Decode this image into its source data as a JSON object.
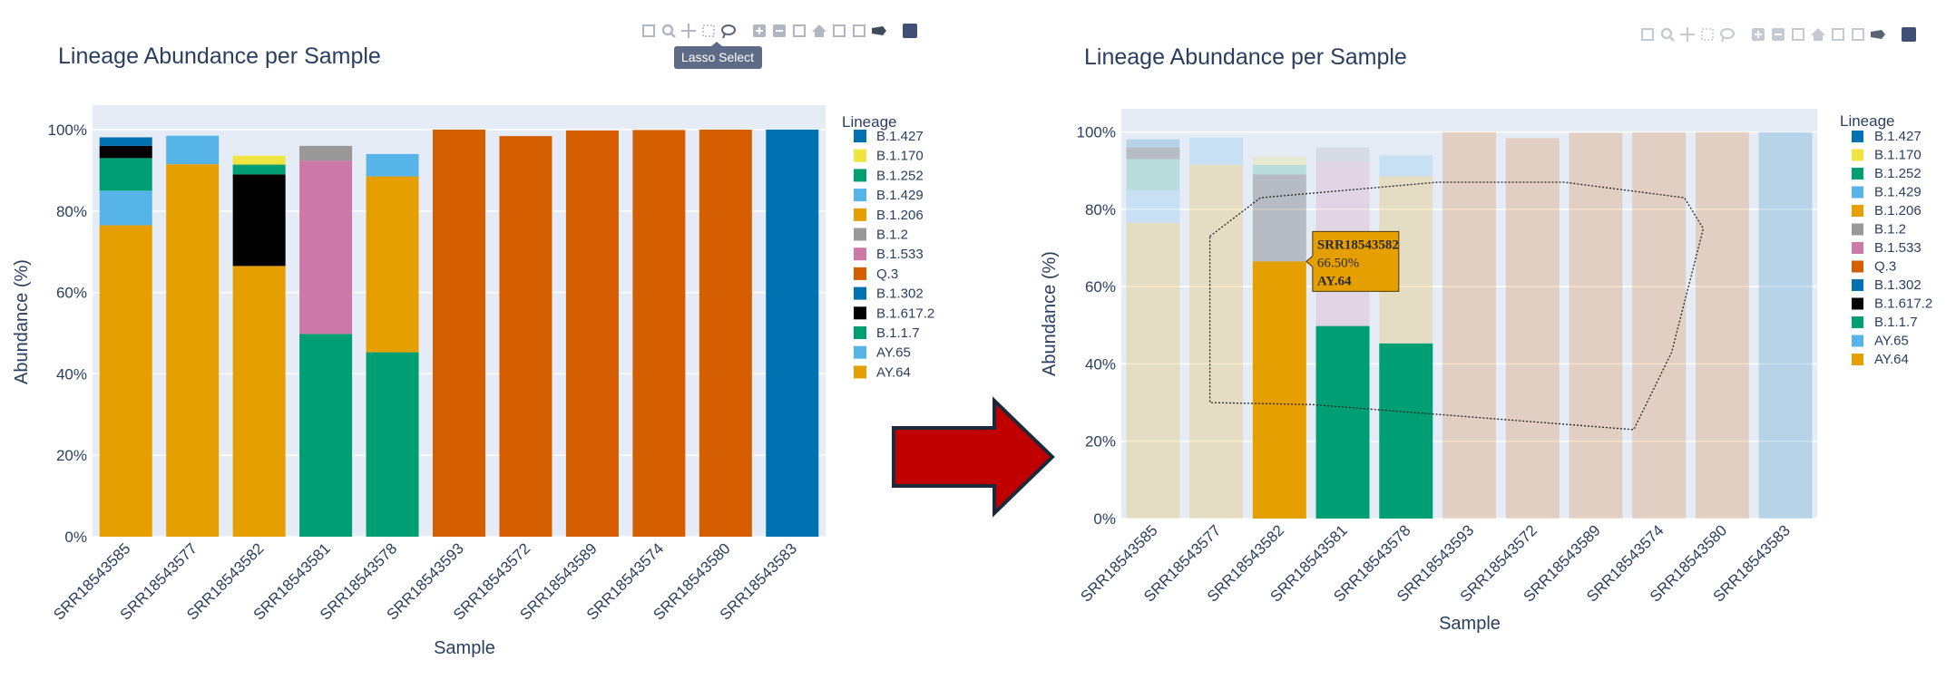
{
  "tooltip": "Lasso Select",
  "hover": {
    "sample": "SRR18543582",
    "value": "66.50%",
    "lineage": "AY.64"
  },
  "toolbar_icons": [
    "camera-icon",
    "zoom-icon",
    "pan-icon",
    "box-select-icon",
    "lasso-select-icon",
    "zoom-in-icon",
    "zoom-out-icon",
    "autoscale-icon",
    "reset-axes-icon",
    "spike-lines-icon",
    "hover-closest-icon",
    "hover-compare-icon",
    "plotly-logo-icon"
  ],
  "colors": {
    "B.1.427": "#0072b2",
    "B.1.170": "#f0e442",
    "B.1.252": "#009e73",
    "B.1.429": "#56b4e9",
    "B.1.206": "#e69f00",
    "B.1.2": "#999999",
    "B.1.533": "#cc79a7",
    "Q.3": "#d55e00",
    "B.1.302": "#0072b2",
    "B.1.617.2": "#000000",
    "B.1.1.7": "#009e73",
    "AY.65": "#56b4e9",
    "AY.64": "#e69f00",
    "arrow": "#c00000",
    "plot_bg": "#e5ecf6"
  },
  "chart_data": [
    {
      "type": "bar",
      "title": "Lineage Abundance per Sample",
      "xlabel": "Sample",
      "ylabel": "Abundance (%)",
      "ylim": [
        0,
        106
      ],
      "yticks": [
        "0%",
        "20%",
        "40%",
        "60%",
        "80%",
        "100%"
      ],
      "legend_title": "Lineage",
      "legend_position": "right",
      "selection": "none",
      "categories": [
        "SRR18543585",
        "SRR18543577",
        "SRR18543582",
        "SRR18543581",
        "SRR18543578",
        "SRR18543593",
        "SRR18543572",
        "SRR18543589",
        "SRR18543574",
        "SRR18543580",
        "SRR18543583"
      ],
      "series": [
        {
          "name": "AY.64",
          "values": [
            76.5,
            91.5,
            66.5,
            0,
            0,
            0,
            0,
            0,
            0,
            0,
            0
          ]
        },
        {
          "name": "AY.65",
          "values": [
            8.5,
            7,
            0,
            0,
            0,
            0,
            0,
            0,
            0,
            0,
            0
          ]
        },
        {
          "name": "B.1.1.7",
          "values": [
            8,
            0,
            0,
            49.8,
            45.3,
            0,
            0,
            0,
            0,
            0,
            0
          ]
        },
        {
          "name": "B.1.617.2",
          "values": [
            3,
            0,
            22.5,
            0,
            0,
            0,
            0,
            0,
            0,
            0,
            0
          ]
        },
        {
          "name": "B.1.302",
          "values": [
            0,
            0,
            0,
            0,
            0,
            0,
            0,
            0,
            0,
            0,
            100
          ]
        },
        {
          "name": "Q.3",
          "values": [
            0,
            0,
            0,
            0,
            0,
            100,
            98.4,
            99.8,
            99.9,
            100,
            0
          ]
        },
        {
          "name": "B.1.533",
          "values": [
            0,
            0,
            0,
            42.6,
            0,
            0,
            0,
            0,
            0,
            0,
            0
          ]
        },
        {
          "name": "B.1.2",
          "values": [
            0,
            0,
            0,
            3.6,
            0,
            0,
            0,
            0,
            0,
            0,
            0
          ]
        },
        {
          "name": "B.1.206",
          "values": [
            0,
            0,
            0,
            0,
            43.2,
            0,
            0,
            0,
            0,
            0,
            0
          ]
        },
        {
          "name": "B.1.429",
          "values": [
            0,
            0,
            0,
            0,
            5.5,
            0,
            0,
            0,
            0,
            0,
            0
          ]
        },
        {
          "name": "B.1.252",
          "values": [
            0,
            0,
            2.4,
            0,
            0,
            0,
            0,
            0,
            0,
            0,
            0
          ]
        },
        {
          "name": "B.1.170",
          "values": [
            0,
            0,
            2.2,
            0,
            0,
            0,
            0,
            0,
            0,
            0,
            0
          ]
        },
        {
          "name": "B.1.427",
          "values": [
            2.1,
            0,
            0,
            0,
            0,
            0,
            0,
            0,
            0,
            0,
            0
          ]
        }
      ]
    },
    {
      "type": "bar",
      "title": "Lineage Abundance per Sample",
      "xlabel": "Sample",
      "ylabel": "Abundance (%)",
      "ylim": [
        0,
        106
      ],
      "yticks": [
        "0%",
        "20%",
        "40%",
        "60%",
        "80%",
        "100%"
      ],
      "legend_title": "Lineage",
      "legend_position": "right",
      "selection": "lasso",
      "selected_samples": [
        "SRR18543582",
        "SRR18543581",
        "SRR18543578"
      ],
      "categories": [
        "SRR18543585",
        "SRR18543577",
        "SRR18543582",
        "SRR18543581",
        "SRR18543578",
        "SRR18543593",
        "SRR18543572",
        "SRR18543589",
        "SRR18543574",
        "SRR18543580",
        "SRR18543583"
      ],
      "series": [
        {
          "name": "AY.64",
          "values": [
            76.5,
            91.5,
            66.5,
            0,
            0,
            0,
            0,
            0,
            0,
            0,
            0
          ]
        },
        {
          "name": "AY.65",
          "values": [
            8.5,
            7,
            0,
            0,
            0,
            0,
            0,
            0,
            0,
            0,
            0
          ]
        },
        {
          "name": "B.1.1.7",
          "values": [
            8,
            0,
            0,
            49.8,
            45.3,
            0,
            0,
            0,
            0,
            0,
            0
          ]
        },
        {
          "name": "B.1.617.2",
          "values": [
            3,
            0,
            22.5,
            0,
            0,
            0,
            0,
            0,
            0,
            0,
            0
          ]
        },
        {
          "name": "B.1.302",
          "values": [
            0,
            0,
            0,
            0,
            0,
            0,
            0,
            0,
            0,
            0,
            100
          ]
        },
        {
          "name": "Q.3",
          "values": [
            0,
            0,
            0,
            0,
            0,
            100,
            98.4,
            99.8,
            99.9,
            100,
            0
          ]
        },
        {
          "name": "B.1.533",
          "values": [
            0,
            0,
            0,
            42.6,
            0,
            0,
            0,
            0,
            0,
            0,
            0
          ]
        },
        {
          "name": "B.1.2",
          "values": [
            0,
            0,
            0,
            3.6,
            0,
            0,
            0,
            0,
            0,
            0,
            0
          ]
        },
        {
          "name": "B.1.206",
          "values": [
            0,
            0,
            0,
            0,
            43.2,
            0,
            0,
            0,
            0,
            0,
            0
          ]
        },
        {
          "name": "B.1.429",
          "values": [
            0,
            0,
            0,
            0,
            5.5,
            0,
            0,
            0,
            0,
            0,
            0
          ]
        },
        {
          "name": "B.1.252",
          "values": [
            0,
            0,
            2.4,
            0,
            0,
            0,
            0,
            0,
            0,
            0,
            0
          ]
        },
        {
          "name": "B.1.170",
          "values": [
            0,
            0,
            2.2,
            0,
            0,
            0,
            0,
            0,
            0,
            0,
            0
          ]
        },
        {
          "name": "B.1.427",
          "values": [
            2.1,
            0,
            0,
            0,
            0,
            0,
            0,
            0,
            0,
            0,
            0
          ]
        }
      ]
    }
  ]
}
